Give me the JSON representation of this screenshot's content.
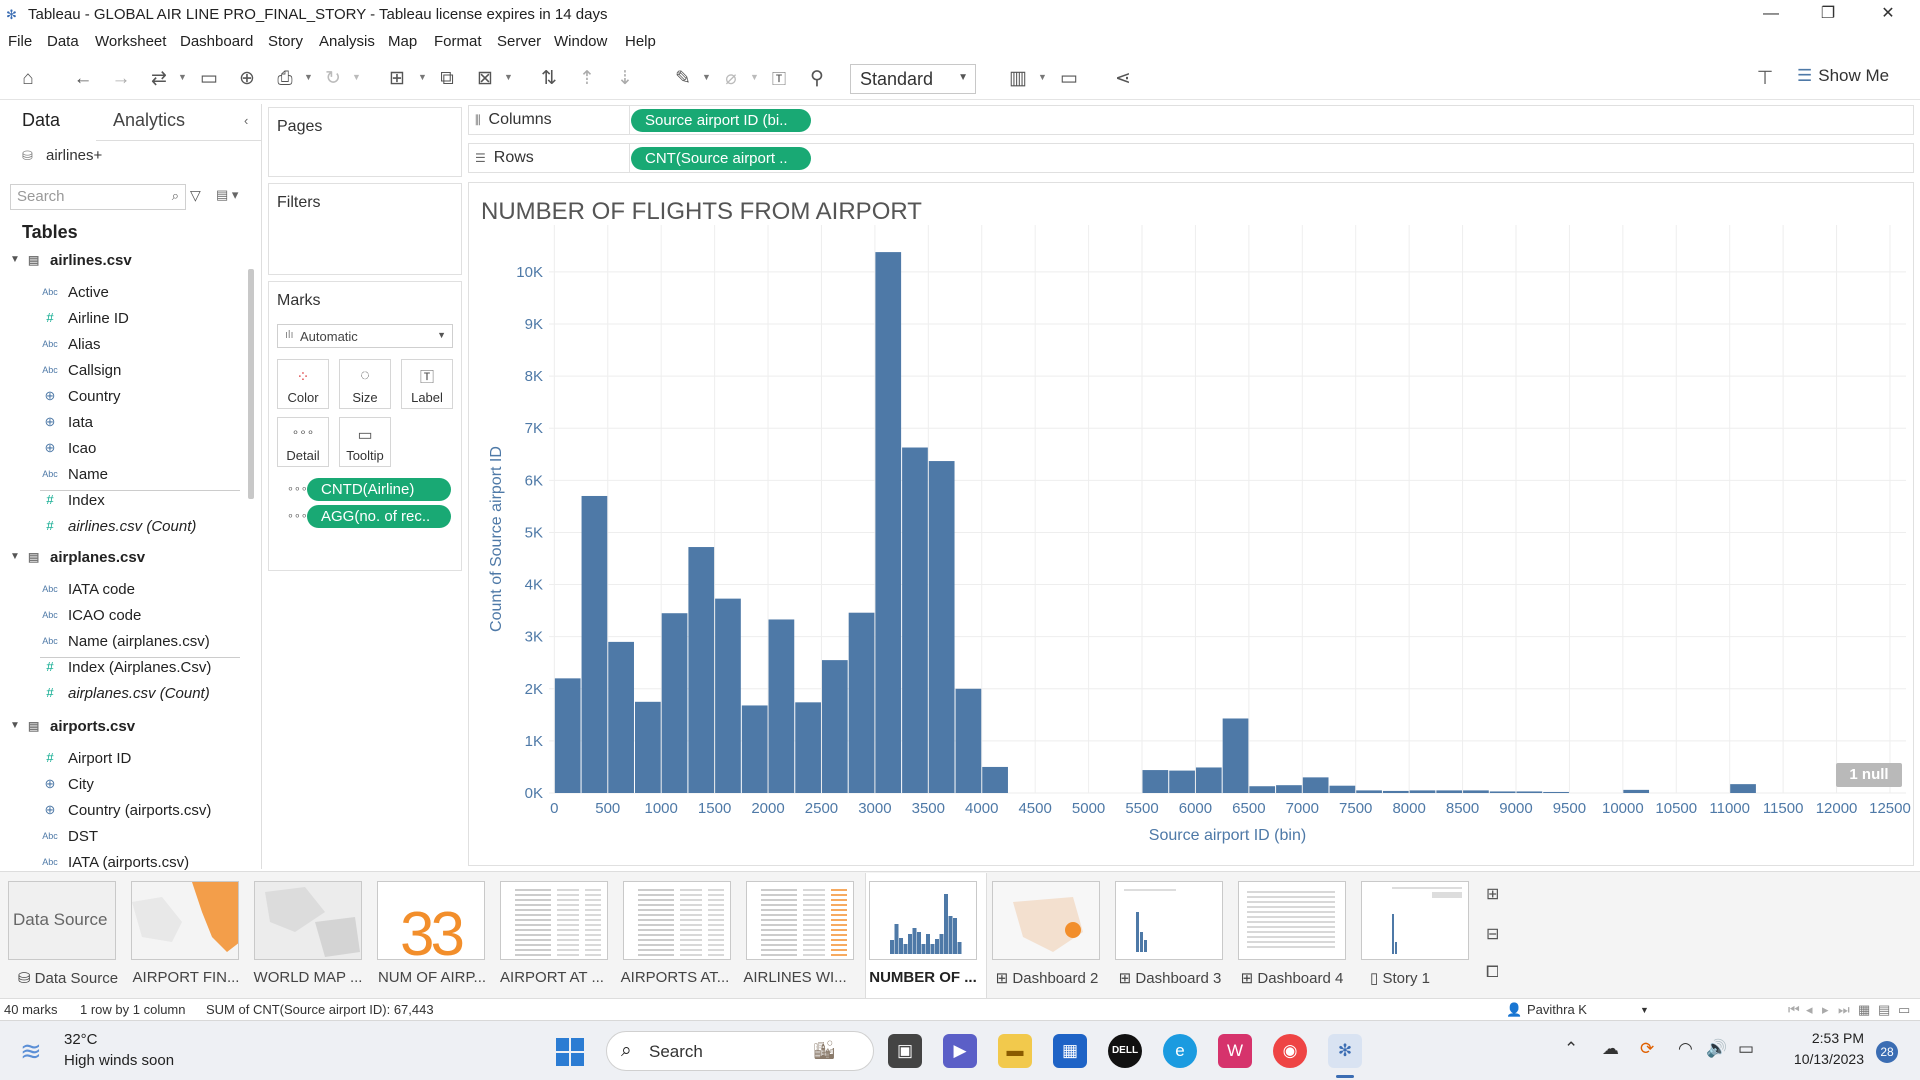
{
  "window": {
    "title": "Tableau - GLOBAL AIR LINE PRO_FINAL_STORY - Tableau license expires in 14 days"
  },
  "menu": [
    "File",
    "Data",
    "Worksheet",
    "Dashboard",
    "Story",
    "Analysis",
    "Map",
    "Format",
    "Server",
    "Window",
    "Help"
  ],
  "toolbar": {
    "fit_select": "Standard",
    "show_me": "Show Me"
  },
  "data_pane": {
    "tabs": [
      "Data",
      "Analytics"
    ],
    "data_source": "airlines+",
    "search_placeholder": "Search",
    "tables_heading": "Tables",
    "tables": [
      {
        "name": "airlines.csv",
        "fields": [
          {
            "type": "Abc",
            "name": "Active"
          },
          {
            "type": "#",
            "name": "Airline ID"
          },
          {
            "type": "Abc",
            "name": "Alias"
          },
          {
            "type": "Abc",
            "name": "Callsign"
          },
          {
            "type": "geo",
            "name": "Country"
          },
          {
            "type": "geo",
            "name": "Iata"
          },
          {
            "type": "geo",
            "name": "Icao"
          },
          {
            "type": "Abc",
            "name": "Name"
          },
          {
            "type": "#",
            "name": "Index"
          },
          {
            "type": "#",
            "name": "airlines.csv (Count)"
          }
        ]
      },
      {
        "name": "airplanes.csv",
        "fields": [
          {
            "type": "Abc",
            "name": "IATA code"
          },
          {
            "type": "Abc",
            "name": "ICAO code"
          },
          {
            "type": "Abc",
            "name": "Name (airplanes.csv)"
          },
          {
            "type": "#",
            "name": "Index (Airplanes.Csv)"
          },
          {
            "type": "#",
            "name": "airplanes.csv (Count)"
          }
        ]
      },
      {
        "name": "airports.csv",
        "fields": [
          {
            "type": "#",
            "name": "Airport ID"
          },
          {
            "type": "geo",
            "name": "City"
          },
          {
            "type": "geo",
            "name": "Country (airports.csv)"
          },
          {
            "type": "Abc",
            "name": "DST"
          },
          {
            "type": "Abc",
            "name": "IATA (airports.csv)"
          }
        ]
      }
    ]
  },
  "cards": {
    "pages": "Pages",
    "filters": "Filters",
    "marks": "Marks",
    "mark_type": "Automatic",
    "mark_buttons": [
      "Color",
      "Size",
      "Label",
      "Detail",
      "Tooltip"
    ],
    "mark_pills": [
      "CNTD(Airline)",
      "AGG(no. of rec.."
    ]
  },
  "shelves": {
    "columns_label": "Columns",
    "rows_label": "Rows",
    "columns_pill": "Source airport ID (bi..",
    "rows_pill": "CNT(Source airport .."
  },
  "chart_data": {
    "type": "bar",
    "title": "NUMBER OF FLIGHTS FROM AIRPORT",
    "xlabel": "Source airport ID (bin)",
    "ylabel": "Count of Source airport ID",
    "bin_width": 250,
    "x": [
      0,
      250,
      500,
      750,
      1000,
      1250,
      1500,
      1750,
      2000,
      2250,
      2500,
      2750,
      3000,
      3250,
      3500,
      3750,
      4000,
      4250,
      5500,
      5750,
      6000,
      6250,
      6500,
      6750,
      7000,
      7250,
      7500,
      7750,
      8000,
      8250,
      8500,
      8750,
      9000,
      9250,
      10000,
      11000
    ],
    "values": [
      2200,
      5700,
      2900,
      1750,
      3450,
      4720,
      3730,
      1680,
      3330,
      1740,
      2550,
      3460,
      10380,
      6630,
      6370,
      2000,
      500,
      0,
      440,
      430,
      490,
      1430,
      130,
      150,
      300,
      140,
      50,
      40,
      50,
      50,
      50,
      30,
      30,
      20,
      60,
      170
    ],
    "xticks": [
      "0",
      "500",
      "1000",
      "1500",
      "2000",
      "2500",
      "3000",
      "3500",
      "4000",
      "4500",
      "5000",
      "5500",
      "6000",
      "6500",
      "7000",
      "7500",
      "8000",
      "8500",
      "9000",
      "9500",
      "10000",
      "10500",
      "11000",
      "11500",
      "12000",
      "12500"
    ],
    "yticks": [
      "0K",
      "1K",
      "2K",
      "3K",
      "4K",
      "5K",
      "6K",
      "7K",
      "8K",
      "9K",
      "10K"
    ],
    "xlim": [
      -50,
      12650
    ],
    "ylim": [
      0,
      10900
    ],
    "grid": true,
    "color": "#4e79a7",
    "null_indicator": "1 null"
  },
  "sheet_tabs": [
    {
      "label": "Data Source",
      "icon": "db"
    },
    {
      "label": "AIRPORT FIN...",
      "icon": ""
    },
    {
      "label": "WORLD MAP ...",
      "icon": ""
    },
    {
      "label": "NUM OF AIRP...",
      "icon": ""
    },
    {
      "label": "AIRPORT AT ...",
      "icon": ""
    },
    {
      "label": "AIRPORTS AT...",
      "icon": ""
    },
    {
      "label": "AIRLINES WI...",
      "icon": ""
    },
    {
      "label": "NUMBER OF ...",
      "icon": "",
      "active": true
    },
    {
      "label": "Dashboard 2",
      "icon": "dash"
    },
    {
      "label": "Dashboard 3",
      "icon": "dash"
    },
    {
      "label": "Dashboard 4",
      "icon": "dash"
    },
    {
      "label": "Story 1",
      "icon": "story"
    }
  ],
  "thumb_texts": {
    "data_source": "Data Source",
    "num_airp": "33"
  },
  "status": {
    "marks": "40 marks",
    "rows_cols": "1 row by 1 column",
    "sum": "SUM of CNT(Source airport ID): 67,443",
    "user": "Pavithra  K"
  },
  "taskbar": {
    "temp": "32°C",
    "weather": "High winds soon",
    "search": "Search",
    "time": "2:53 PM",
    "date": "10/13/2023",
    "notifications": "28"
  }
}
